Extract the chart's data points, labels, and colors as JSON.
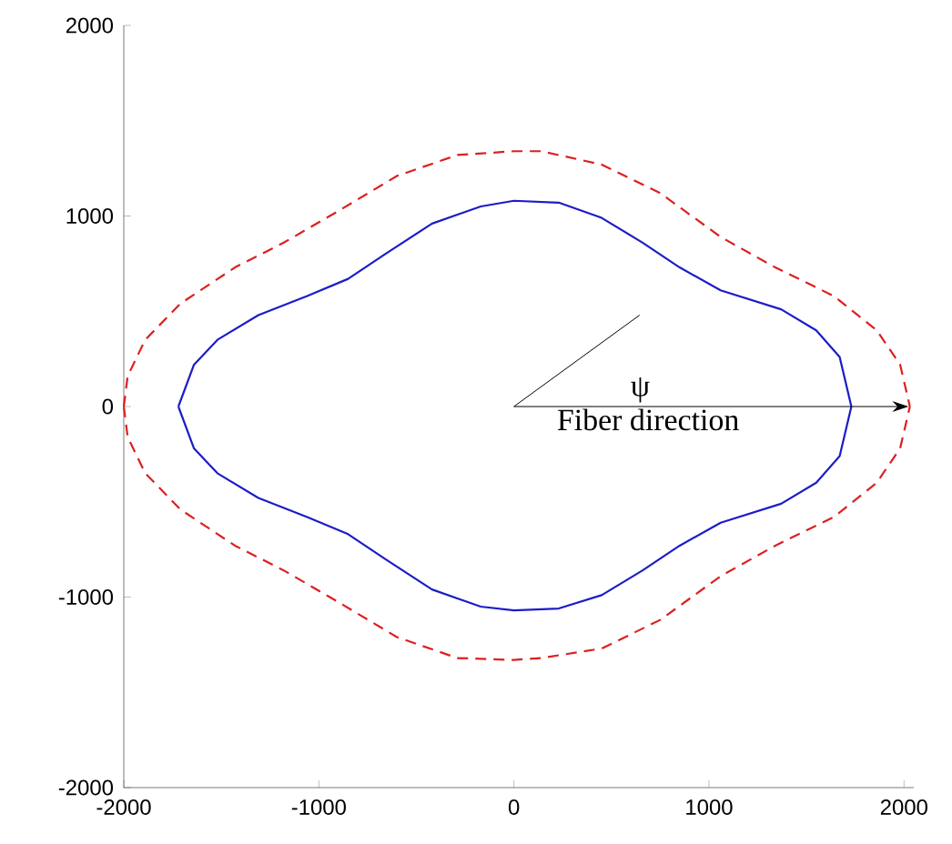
{
  "chart_data": {
    "type": "line",
    "xlim": [
      -2000,
      2050
    ],
    "ylim": [
      -2000,
      2000
    ],
    "xticks": [
      -2000,
      -1000,
      0,
      1000,
      2000
    ],
    "yticks": [
      -2000,
      -1000,
      0,
      1000,
      2000
    ],
    "grid": false,
    "marker": "none",
    "annotations": [
      "ψ",
      "Fiber direction"
    ],
    "series": [
      {
        "color": "#1c1cc8",
        "line_style": "solid",
        "x": [
          -1720,
          -1640,
          -1520,
          -1310,
          -1060,
          -850,
          -660,
          -420,
          -170,
          0,
          230,
          450,
          660,
          850,
          1060,
          1370,
          1550,
          1670,
          1730,
          null,
          -1720,
          -1640,
          -1520,
          -1310,
          -1060,
          -850,
          -660,
          -420,
          -170,
          0,
          230,
          450,
          660,
          850,
          1060,
          1370,
          1550,
          1670,
          1730
        ],
        "values": [
          0,
          220,
          350,
          480,
          580,
          670,
          800,
          960,
          1050,
          1080,
          1070,
          990,
          860,
          730,
          610,
          510,
          400,
          260,
          0,
          null,
          0,
          -220,
          -350,
          -480,
          -580,
          -670,
          -800,
          -960,
          -1050,
          -1070,
          -1060,
          -990,
          -860,
          -730,
          -610,
          -510,
          -400,
          -260,
          0
        ]
      },
      {
        "color": "#dc2020",
        "line_style": "dashed",
        "x": [
          -2000,
          -1980,
          -1890,
          -1710,
          -1430,
          -1180,
          -910,
          -600,
          -290,
          0,
          140,
          450,
          750,
          1060,
          1340,
          1640,
          1860,
          1980,
          2030,
          null,
          -2000,
          -1980,
          -1890,
          -1710,
          -1430,
          -1180,
          -910,
          -600,
          -290,
          0,
          140,
          450,
          750,
          1060,
          1340,
          1640,
          1860,
          1980,
          2030
        ],
        "values": [
          0,
          160,
          350,
          540,
          730,
          860,
          1020,
          1210,
          1320,
          1340,
          1340,
          1270,
          1120,
          890,
          730,
          580,
          400,
          220,
          0,
          null,
          0,
          -160,
          -350,
          -540,
          -730,
          -860,
          -1020,
          -1210,
          -1320,
          -1330,
          -1320,
          -1270,
          -1120,
          -890,
          -730,
          -580,
          -400,
          -220,
          0
        ]
      }
    ]
  }
}
